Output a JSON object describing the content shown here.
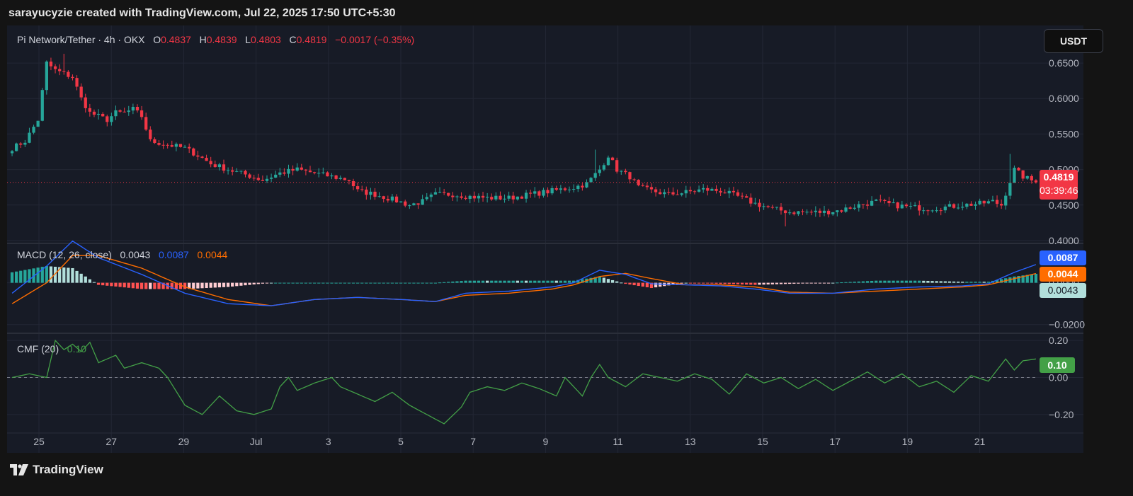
{
  "header": {
    "attribution": "sarayucyzie created with TradingView.com, Jul 22, 2025 17:50 UTC+5:30"
  },
  "symbol_legend": {
    "title": "Pi Network/Tether · 4h · OKX",
    "open_label": "O",
    "open": "0.4837",
    "high_label": "H",
    "high": "0.4839",
    "low_label": "L",
    "low": "0.4803",
    "close_label": "C",
    "close": "0.4819",
    "change": "−0.0017 (−0.35%)"
  },
  "currency_button": "USDT",
  "price_tag": {
    "price": "0.4819",
    "countdown": "03:39:46"
  },
  "macd_legend": {
    "name": "MACD (12, 26, close)",
    "hist": "0.0043",
    "macd": "0.0087",
    "signal": "0.0044"
  },
  "macd_tags": {
    "macd": "0.0087",
    "signal": "0.0044",
    "hist": "0.0043"
  },
  "cmf_legend": {
    "name": "CMF (20)",
    "value": "0.10"
  },
  "cmf_tag": "0.10",
  "footer": {
    "brand": "TradingView"
  },
  "colors": {
    "up": "#26a69a",
    "down": "#f23645",
    "macd": "#2962ff",
    "signal": "#ff6d00",
    "cmf": "#43a047"
  },
  "chart_data": [
    {
      "type": "candlestick",
      "title": "Pi Network/Tether · 4h · OKX",
      "x_ticks": [
        "25",
        "27",
        "29",
        "Jul",
        "3",
        "5",
        "7",
        "9",
        "11",
        "13",
        "15",
        "17",
        "19",
        "21"
      ],
      "y_ticks": [
        "0.6500",
        "0.6000",
        "0.5500",
        "0.5000",
        "0.4500",
        "0.4000"
      ],
      "ylim": [
        0.395,
        0.667
      ],
      "last_price": 0.4819,
      "close_path": [
        [
          0,
          0.53
        ],
        [
          3,
          0.54
        ],
        [
          6,
          0.57
        ],
        [
          8,
          0.65
        ],
        [
          10,
          0.64
        ],
        [
          12,
          0.635
        ],
        [
          14,
          0.63
        ],
        [
          16,
          0.6
        ],
        [
          18,
          0.58
        ],
        [
          20,
          0.575
        ],
        [
          22,
          0.57
        ],
        [
          24,
          0.58
        ],
        [
          26,
          0.58
        ],
        [
          28,
          0.585
        ],
        [
          30,
          0.575
        ],
        [
          32,
          0.54
        ],
        [
          36,
          0.535
        ],
        [
          40,
          0.53
        ],
        [
          43,
          0.52
        ],
        [
          46,
          0.508
        ],
        [
          50,
          0.5
        ],
        [
          54,
          0.493
        ],
        [
          58,
          0.485
        ],
        [
          62,
          0.495
        ],
        [
          66,
          0.5
        ],
        [
          70,
          0.495
        ],
        [
          74,
          0.49
        ],
        [
          78,
          0.485
        ],
        [
          80,
          0.47
        ],
        [
          84,
          0.465
        ],
        [
          88,
          0.458
        ],
        [
          92,
          0.45
        ],
        [
          95,
          0.455
        ],
        [
          98,
          0.465
        ],
        [
          102,
          0.465
        ],
        [
          106,
          0.462
        ],
        [
          110,
          0.46
        ],
        [
          115,
          0.46
        ],
        [
          120,
          0.465
        ],
        [
          125,
          0.47
        ],
        [
          130,
          0.475
        ],
        [
          133,
          0.48
        ],
        [
          136,
          0.5
        ],
        [
          138,
          0.52
        ],
        [
          140,
          0.5
        ],
        [
          143,
          0.49
        ],
        [
          145,
          0.475
        ],
        [
          148,
          0.47
        ],
        [
          152,
          0.465
        ],
        [
          156,
          0.468
        ],
        [
          160,
          0.472
        ],
        [
          164,
          0.47
        ],
        [
          168,
          0.462
        ],
        [
          172,
          0.452
        ],
        [
          176,
          0.445
        ],
        [
          180,
          0.44
        ],
        [
          184,
          0.44
        ],
        [
          188,
          0.44
        ],
        [
          192,
          0.443
        ],
        [
          196,
          0.45
        ],
        [
          200,
          0.455
        ],
        [
          204,
          0.45
        ],
        [
          208,
          0.447
        ],
        [
          212,
          0.445
        ],
        [
          216,
          0.447
        ],
        [
          220,
          0.45
        ],
        [
          224,
          0.452
        ],
        [
          227,
          0.455
        ],
        [
          229,
          0.45
        ],
        [
          232,
          0.5
        ],
        [
          234,
          0.49
        ],
        [
          237,
          0.482
        ]
      ]
    },
    {
      "type": "line",
      "title": "MACD (12, 26, close)",
      "y_ticks": [
        "0.0000",
        "−0.0200"
      ],
      "ylim": [
        -0.0245,
        0.0185
      ],
      "series": [
        {
          "name": "MACD",
          "values": [
            [
              0,
              -0.005
            ],
            [
              8,
              0.008
            ],
            [
              14,
              0.02
            ],
            [
              20,
              0.012
            ],
            [
              30,
              0.004
            ],
            [
              40,
              -0.005
            ],
            [
              50,
              -0.01
            ],
            [
              60,
              -0.011
            ],
            [
              70,
              -0.008
            ],
            [
              80,
              -0.007
            ],
            [
              90,
              -0.008
            ],
            [
              98,
              -0.009
            ],
            [
              105,
              -0.005
            ],
            [
              115,
              -0.004
            ],
            [
              125,
              -0.002
            ],
            [
              130,
              0.0
            ],
            [
              136,
              0.006
            ],
            [
              142,
              0.004
            ],
            [
              148,
              -0.0005
            ],
            [
              156,
              -0.001
            ],
            [
              164,
              -0.0015
            ],
            [
              172,
              -0.003
            ],
            [
              180,
              -0.005
            ],
            [
              190,
              -0.005
            ],
            [
              200,
              -0.003
            ],
            [
              210,
              -0.002
            ],
            [
              220,
              -0.0015
            ],
            [
              226,
              -0.0005
            ],
            [
              232,
              0.005
            ],
            [
              237,
              0.0087
            ]
          ]
        },
        {
          "name": "Signal",
          "values": [
            [
              0,
              -0.01
            ],
            [
              8,
              0.0
            ],
            [
              14,
              0.013
            ],
            [
              20,
              0.013
            ],
            [
              30,
              0.007
            ],
            [
              40,
              -0.002
            ],
            [
              50,
              -0.008
            ],
            [
              60,
              -0.011
            ],
            [
              70,
              -0.008
            ],
            [
              80,
              -0.007
            ],
            [
              90,
              -0.008
            ],
            [
              98,
              -0.009
            ],
            [
              105,
              -0.006
            ],
            [
              115,
              -0.005
            ],
            [
              125,
              -0.003
            ],
            [
              130,
              -0.001
            ],
            [
              136,
              0.003
            ],
            [
              142,
              0.0045
            ],
            [
              148,
              0.002
            ],
            [
              156,
              -0.001
            ],
            [
              164,
              -0.001
            ],
            [
              172,
              -0.002
            ],
            [
              180,
              -0.0045
            ],
            [
              190,
              -0.005
            ],
            [
              200,
              -0.004
            ],
            [
              210,
              -0.003
            ],
            [
              220,
              -0.002
            ],
            [
              226,
              -0.001
            ],
            [
              232,
              0.002
            ],
            [
              237,
              0.0044
            ]
          ]
        }
      ]
    },
    {
      "type": "line",
      "title": "CMF (20)",
      "y_ticks": [
        "0.20",
        "0.00",
        "−0.20"
      ],
      "ylim": [
        -0.3,
        0.235
      ],
      "series": [
        {
          "name": "CMF",
          "values": [
            [
              0,
              0.0
            ],
            [
              4,
              0.02
            ],
            [
              8,
              0.0
            ],
            [
              10,
              0.2
            ],
            [
              12,
              0.15
            ],
            [
              14,
              0.18
            ],
            [
              16,
              0.14
            ],
            [
              18,
              0.19
            ],
            [
              20,
              0.08
            ],
            [
              24,
              0.12
            ],
            [
              26,
              0.05
            ],
            [
              30,
              0.08
            ],
            [
              34,
              0.05
            ],
            [
              36,
              0.0
            ],
            [
              40,
              -0.15
            ],
            [
              44,
              -0.2
            ],
            [
              48,
              -0.1
            ],
            [
              52,
              -0.18
            ],
            [
              56,
              -0.2
            ],
            [
              60,
              -0.17
            ],
            [
              62,
              -0.05
            ],
            [
              64,
              0.0
            ],
            [
              66,
              -0.07
            ],
            [
              70,
              -0.03
            ],
            [
              74,
              0.0
            ],
            [
              76,
              -0.05
            ],
            [
              80,
              -0.09
            ],
            [
              84,
              -0.13
            ],
            [
              88,
              -0.08
            ],
            [
              92,
              -0.15
            ],
            [
              96,
              -0.2
            ],
            [
              100,
              -0.25
            ],
            [
              104,
              -0.16
            ],
            [
              106,
              -0.08
            ],
            [
              110,
              -0.05
            ],
            [
              114,
              -0.07
            ],
            [
              118,
              -0.03
            ],
            [
              122,
              -0.06
            ],
            [
              126,
              -0.1
            ],
            [
              128,
              0.0
            ],
            [
              130,
              -0.05
            ],
            [
              132,
              -0.1
            ],
            [
              134,
              0.0
            ],
            [
              136,
              0.07
            ],
            [
              138,
              0.0
            ],
            [
              142,
              -0.05
            ],
            [
              146,
              0.02
            ],
            [
              150,
              0.0
            ],
            [
              154,
              -0.02
            ],
            [
              158,
              0.02
            ],
            [
              162,
              -0.01
            ],
            [
              166,
              -0.09
            ],
            [
              170,
              0.02
            ],
            [
              174,
              -0.03
            ],
            [
              178,
              0.0
            ],
            [
              182,
              -0.06
            ],
            [
              186,
              -0.01
            ],
            [
              190,
              -0.07
            ],
            [
              194,
              -0.02
            ],
            [
              198,
              0.03
            ],
            [
              202,
              -0.03
            ],
            [
              206,
              0.02
            ],
            [
              210,
              -0.05
            ],
            [
              214,
              -0.02
            ],
            [
              218,
              -0.08
            ],
            [
              222,
              0.01
            ],
            [
              226,
              -0.02
            ],
            [
              230,
              0.1
            ],
            [
              232,
              0.04
            ],
            [
              234,
              0.09
            ],
            [
              237,
              0.1
            ]
          ]
        }
      ]
    },
    {
      "type": "bar",
      "title": "MACD histogram",
      "values": "derived from MACD minus Signal"
    }
  ]
}
